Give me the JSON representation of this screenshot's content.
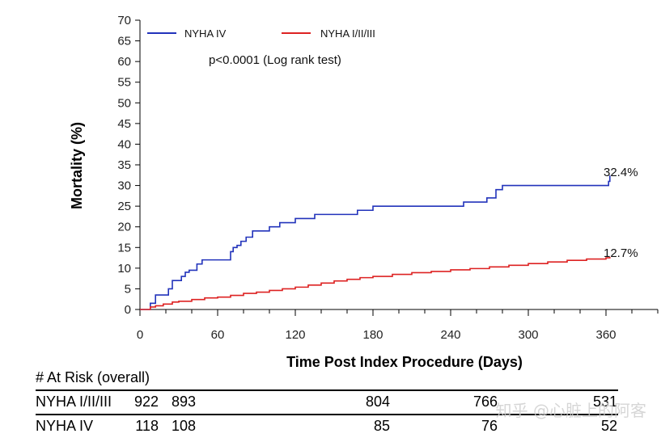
{
  "chart_data": {
    "type": "line",
    "xlabel": "Time Post Index Procedure (Days)",
    "ylabel": "Mortality (%)",
    "xlim": [
      0,
      400
    ],
    "ylim": [
      0,
      70
    ],
    "xticks": [
      0,
      60,
      120,
      180,
      240,
      300,
      360
    ],
    "yticks": [
      0,
      5,
      10,
      15,
      20,
      25,
      30,
      35,
      40,
      45,
      50,
      55,
      60,
      65,
      70
    ],
    "annotation": "p<0.0001 (Log rank test)",
    "legend_position": "top-left",
    "series": [
      {
        "name": "NYHA IV",
        "color": "#2233bb",
        "end_label": "32.4%",
        "step": true,
        "x": [
          0,
          8,
          12,
          17,
          22,
          25,
          28,
          32,
          35,
          38,
          44,
          48,
          58,
          68,
          70,
          72,
          75,
          78,
          82,
          87,
          92,
          100,
          108,
          120,
          135,
          150,
          165,
          168,
          180,
          200,
          240,
          250,
          260,
          268,
          275,
          280,
          300,
          330,
          362,
          363
        ],
        "y": [
          0,
          1.5,
          3.5,
          3.5,
          5,
          7,
          7,
          8,
          9,
          9.5,
          11,
          12,
          12,
          12,
          14,
          15,
          15.5,
          16.5,
          17.5,
          19,
          19,
          20,
          21,
          22,
          23,
          23,
          23,
          24,
          25,
          25,
          25,
          26,
          26,
          27,
          29,
          30,
          30,
          30,
          31,
          32.4
        ]
      },
      {
        "name": "NYHA I/II/III",
        "color": "#dd2222",
        "end_label": "12.7%",
        "step": true,
        "x": [
          0,
          8,
          12,
          18,
          25,
          30,
          40,
          50,
          60,
          70,
          80,
          90,
          100,
          110,
          120,
          130,
          140,
          150,
          160,
          170,
          180,
          195,
          210,
          225,
          240,
          255,
          270,
          285,
          300,
          315,
          330,
          345,
          360,
          363
        ],
        "y": [
          0,
          0.6,
          0.9,
          1.3,
          1.8,
          2.0,
          2.4,
          2.8,
          3.0,
          3.4,
          3.9,
          4.2,
          4.6,
          5.0,
          5.4,
          5.9,
          6.4,
          6.9,
          7.3,
          7.7,
          8.0,
          8.5,
          8.9,
          9.2,
          9.6,
          9.9,
          10.3,
          10.7,
          11.1,
          11.5,
          11.9,
          12.2,
          12.5,
          12.7
        ]
      }
    ]
  },
  "risk_table": {
    "title": "# At Risk (overall)",
    "rows": [
      {
        "label": "NYHA I/II/III",
        "values": [
          "922",
          "893",
          "804",
          "766",
          "531"
        ]
      },
      {
        "label": "NYHA IV",
        "values": [
          "118",
          "108",
          "85",
          "76",
          "52"
        ]
      }
    ]
  },
  "watermark": "知乎 @心脏上的阿客"
}
